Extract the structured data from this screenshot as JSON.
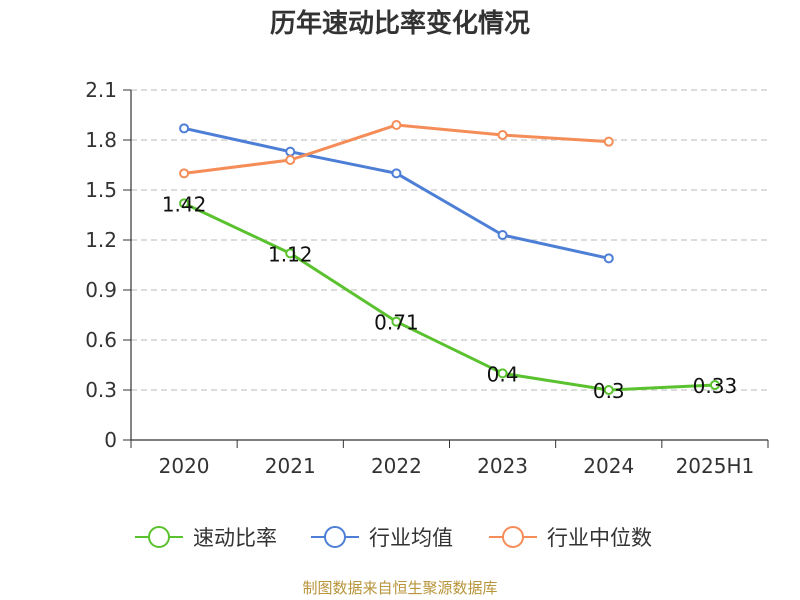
{
  "chart_data": {
    "type": "line",
    "title": "历年速动比率变化情况",
    "categories": [
      "2020",
      "2021",
      "2022",
      "2023",
      "2024",
      "2025H1"
    ],
    "ylim": [
      0,
      2.1
    ],
    "yticks": [
      "0",
      "0.3",
      "0.6",
      "0.9",
      "1.2",
      "1.5",
      "1.8",
      "2.1"
    ],
    "grid": true,
    "legend_position": "bottom",
    "series": [
      {
        "name": "速动比率",
        "color": "#5ac22e",
        "values": [
          1.42,
          1.12,
          0.71,
          0.4,
          0.3,
          0.33
        ],
        "labels": [
          "1.42",
          "1.12",
          "0.71",
          "0.4",
          "0.3",
          "0.33"
        ]
      },
      {
        "name": "行业均值",
        "color": "#4d7fd6",
        "values": [
          1.87,
          1.73,
          1.6,
          1.23,
          1.09,
          null
        ]
      },
      {
        "name": "行业中位数",
        "color": "#f58d58",
        "values": [
          1.6,
          1.68,
          1.89,
          1.83,
          1.79,
          null
        ]
      }
    ],
    "source": "制图数据来自恒生聚源数据库"
  }
}
